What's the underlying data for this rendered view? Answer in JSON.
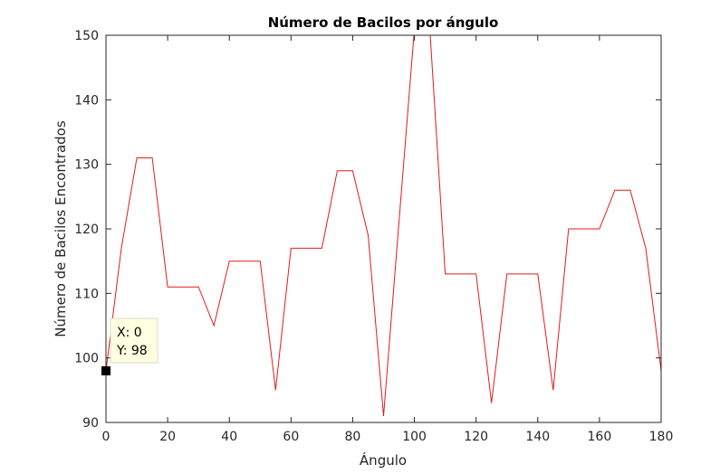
{
  "chart_data": {
    "type": "line",
    "title": "Número de Bacilos por ángulo",
    "xlabel": "Ángulo",
    "ylabel": "Número de Bacilos Encontrados",
    "xlim": [
      0,
      180
    ],
    "ylim": [
      90,
      150
    ],
    "xticks": [
      0,
      20,
      40,
      60,
      80,
      100,
      120,
      140,
      160,
      180
    ],
    "yticks": [
      90,
      100,
      110,
      120,
      130,
      140,
      150
    ],
    "grid": false,
    "line_color": "#e41a1c",
    "series": [
      {
        "x": [
          0,
          5,
          10,
          15,
          20,
          25,
          30,
          35,
          40,
          45,
          50,
          55,
          60,
          65,
          70,
          75,
          80,
          85,
          90,
          95,
          100,
          105,
          110,
          115,
          120,
          125,
          130,
          135,
          140,
          145,
          150,
          155,
          160,
          165,
          170,
          175,
          180
        ],
        "y": [
          98,
          117,
          131,
          131,
          111,
          111,
          111,
          105,
          115,
          115,
          115,
          95,
          117,
          117,
          117,
          129,
          129,
          119,
          91,
          121,
          151,
          151,
          113,
          113,
          113,
          93,
          113,
          113,
          113,
          95,
          120,
          120,
          120,
          126,
          126,
          117,
          98
        ]
      }
    ],
    "datatip": {
      "x_text": "X: 0",
      "y_text": "Y: 98",
      "x": 0,
      "y": 98
    }
  }
}
